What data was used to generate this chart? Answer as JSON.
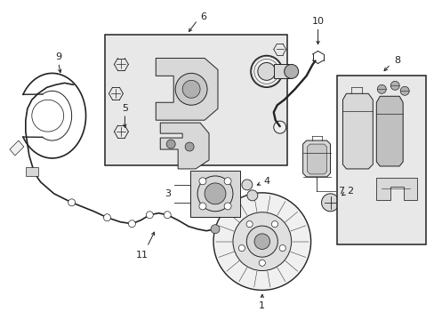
{
  "bg_color": "#ffffff",
  "line_color": "#222222",
  "fill_light": "#f0f0f0",
  "fill_gray": "#d8d8d8",
  "fill_dark": "#b0b0b0",
  "box_bg": "#e8e8e8",
  "figsize": [
    4.89,
    3.6
  ],
  "dpi": 100
}
